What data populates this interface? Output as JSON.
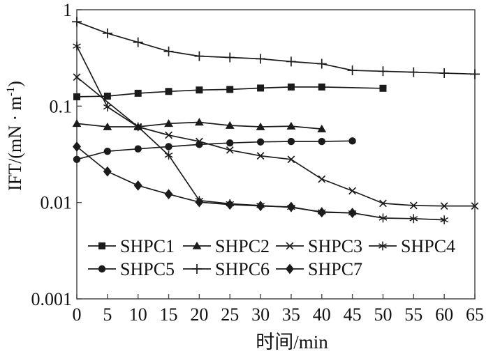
{
  "chart_data": {
    "type": "line",
    "title": "",
    "xlabel": "时间/min",
    "ylabel": "IFT/(mN·m⁻¹)",
    "ylabel_parts": {
      "main": "IFT/(mN · m",
      "superscript": "-1",
      "suffix": ")"
    },
    "x_axis": {
      "min": 0,
      "max": 65,
      "ticks": [
        0,
        5,
        10,
        15,
        20,
        25,
        30,
        35,
        40,
        45,
        50,
        55,
        60,
        65
      ]
    },
    "y_axis": {
      "scale": "log",
      "min": 0.001,
      "max": 1,
      "ticks": [
        {
          "value": 1,
          "label": "1"
        },
        {
          "value": 0.1,
          "label": "0.1"
        },
        {
          "value": 0.01,
          "label": "0.01"
        },
        {
          "value": 0.001,
          "label": "0.001"
        }
      ]
    },
    "grid": false,
    "legend_position": "inside-bottom",
    "legend_rows": [
      [
        0,
        1,
        2,
        3
      ],
      [
        4,
        5,
        6
      ]
    ],
    "series": [
      {
        "name": "SHPC1",
        "marker": "square",
        "x": [
          0,
          5,
          10,
          15,
          20,
          25,
          30,
          35,
          40,
          50
        ],
        "y": [
          0.125,
          0.127,
          0.136,
          0.142,
          0.147,
          0.149,
          0.154,
          0.158,
          0.158,
          0.153
        ]
      },
      {
        "name": "SHPC2",
        "marker": "triangle",
        "x": [
          0,
          5,
          10,
          15,
          20,
          25,
          30,
          35,
          40
        ],
        "y": [
          0.066,
          0.061,
          0.061,
          0.066,
          0.068,
          0.063,
          0.061,
          0.062,
          0.058
        ]
      },
      {
        "name": "SHPC3",
        "marker": "x",
        "x": [
          0,
          10,
          15,
          20,
          25,
          30,
          35,
          40,
          45,
          50,
          55,
          60,
          65
        ],
        "y": [
          0.2,
          0.061,
          0.05,
          0.043,
          0.035,
          0.0305,
          0.028,
          0.0175,
          0.0132,
          0.0098,
          0.0093,
          0.0092,
          0.0092
        ]
      },
      {
        "name": "SHPC4",
        "marker": "asterisk",
        "x": [
          0,
          5,
          10,
          15,
          20,
          25,
          30,
          35,
          40,
          45,
          50,
          55,
          60
        ],
        "y": [
          0.42,
          0.098,
          0.061,
          0.031,
          0.0105,
          0.0097,
          0.0093,
          0.0089,
          0.008,
          0.0078,
          0.0069,
          0.0068,
          0.0066
        ]
      },
      {
        "name": "SHPC5",
        "marker": "circle",
        "x": [
          0,
          5,
          10,
          15,
          20,
          25,
          30,
          35,
          40,
          45
        ],
        "y": [
          0.028,
          0.034,
          0.036,
          0.038,
          0.04,
          0.0415,
          0.0425,
          0.043,
          0.043,
          0.0435
        ]
      },
      {
        "name": "SHPC6",
        "marker": "plus",
        "x": [
          0,
          5,
          10,
          15,
          20,
          25,
          30,
          35,
          40,
          45,
          50,
          55,
          60,
          65
        ],
        "y": [
          0.75,
          0.57,
          0.46,
          0.37,
          0.33,
          0.32,
          0.31,
          0.29,
          0.275,
          0.235,
          0.23,
          0.225,
          0.22,
          0.215
        ]
      },
      {
        "name": "SHPC7",
        "marker": "diamond",
        "x": [
          0,
          5,
          10,
          15,
          20,
          25,
          30,
          35,
          40,
          45
        ],
        "y": [
          0.038,
          0.021,
          0.015,
          0.0122,
          0.0101,
          0.0095,
          0.0092,
          0.009,
          0.0079,
          0.0078
        ]
      }
    ]
  },
  "colors": {
    "background": "#ffffff",
    "frame": "#4a4a4a",
    "line": "#1b1b1b",
    "text": "#111111"
  }
}
